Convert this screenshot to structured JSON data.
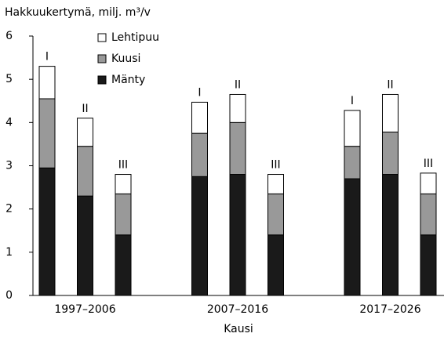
{
  "chart_data": {
    "type": "stacked_bar",
    "title": "Hakkuukertymä, milj. m³/v",
    "x_label": "Kausi",
    "groups": [
      "1997–2006",
      "2007–2016",
      "2017–2026"
    ],
    "categories": [
      "I",
      "II",
      "III",
      "I",
      "II",
      "III",
      "I",
      "II",
      "III"
    ],
    "series": [
      {
        "name": "Mänty",
        "color": "#1a1a1a",
        "values": [
          2.95,
          2.3,
          1.4,
          2.75,
          2.8,
          1.4,
          2.7,
          2.8,
          1.4
        ]
      },
      {
        "name": "Kuusi",
        "color": "#999999",
        "values": [
          1.6,
          1.15,
          0.95,
          1.0,
          1.2,
          0.95,
          0.75,
          0.98,
          0.95
        ]
      },
      {
        "name": "Lehtipuu",
        "color": "#ffffff",
        "values": [
          0.75,
          0.65,
          0.45,
          0.72,
          0.65,
          0.45,
          0.83,
          0.87,
          0.48
        ]
      }
    ],
    "ylim": [
      0,
      6
    ],
    "yticks": [
      0,
      1,
      2,
      3,
      4,
      5,
      6
    ],
    "grid": false,
    "legend": "top-left"
  }
}
